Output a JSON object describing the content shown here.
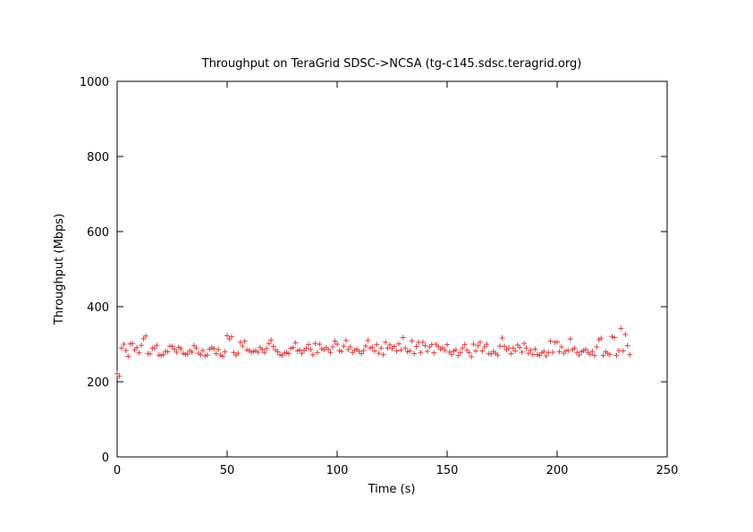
{
  "chart_data": {
    "type": "scatter",
    "title": "Throughput on TeraGrid SDSC->NCSA (tg-c145.sdsc.teragrid.org)",
    "xlabel": "Time (s)",
    "ylabel": "Throughput (Mbps)",
    "xlim": [
      0,
      250
    ],
    "ylim": [
      0,
      1000
    ],
    "xticks": [
      "0",
      "50",
      "100",
      "150",
      "200",
      "250"
    ],
    "yticks": [
      "0",
      "200",
      "400",
      "600",
      "800",
      "1000"
    ],
    "grid": false,
    "marker": "+",
    "color": "#e03c3c",
    "series": [
      {
        "x": [
          0,
          1,
          2,
          3,
          4,
          5,
          6,
          7,
          8,
          9,
          10,
          11,
          12,
          13,
          14,
          15,
          16,
          17,
          18,
          19,
          20,
          21,
          22,
          23,
          24,
          25,
          26,
          27,
          28,
          29,
          30,
          31,
          32,
          33,
          34,
          35,
          36,
          37,
          38,
          39,
          40,
          41,
          42,
          43,
          44,
          45,
          46,
          47,
          48,
          49,
          50,
          51,
          52,
          53,
          54,
          55,
          56,
          57,
          58,
          59,
          60,
          61,
          62,
          63,
          64,
          65,
          66,
          67,
          68,
          69,
          70,
          71,
          72,
          73,
          74,
          75,
          76,
          77,
          78,
          79,
          80,
          81,
          82,
          83,
          84,
          85,
          86,
          87,
          88,
          89,
          90,
          91,
          92,
          93,
          94,
          95,
          96,
          97,
          98,
          99,
          100,
          101,
          102,
          103,
          104,
          105,
          106,
          107,
          108,
          109,
          110,
          111,
          112,
          113,
          114,
          115,
          116,
          117,
          118,
          119,
          120,
          121,
          122,
          123,
          124,
          125,
          126,
          127,
          128,
          129,
          130,
          131,
          132,
          133,
          134,
          135,
          136,
          137,
          138,
          139,
          140,
          141,
          142,
          143,
          144,
          145,
          146,
          147,
          148,
          149,
          150,
          151,
          152,
          153,
          154,
          155,
          156,
          157,
          158,
          159,
          160,
          161,
          162,
          163,
          164,
          165,
          166,
          167,
          168,
          169,
          170,
          171,
          172,
          173,
          174,
          175,
          176,
          177,
          178,
          179,
          180,
          181,
          182,
          183,
          184,
          185,
          186,
          187,
          188,
          189,
          190,
          191,
          192,
          193,
          194,
          195,
          196,
          197,
          198,
          199,
          200,
          201,
          202,
          203,
          204,
          205,
          206,
          207,
          208,
          209,
          210,
          211,
          212,
          213,
          214,
          215,
          216,
          217,
          218,
          219,
          220,
          221,
          222,
          223,
          224,
          225,
          226,
          227,
          228,
          229,
          230,
          231,
          232,
          233
        ],
        "y": [
          222,
          215,
          290,
          300,
          283,
          268,
          301,
          302,
          285,
          291,
          277,
          297,
          315,
          322,
          275,
          274,
          289,
          290,
          297,
          271,
          270,
          272,
          281,
          280,
          295,
          294,
          287,
          279,
          292,
          288,
          276,
          273,
          274,
          283,
          279,
          296,
          290,
          276,
          272,
          283,
          269,
          271,
          287,
          291,
          288,
          275,
          286,
          271,
          268,
          280,
          323,
          314,
          320,
          278,
          271,
          276,
          305,
          295,
          308,
          285,
          283,
          279,
          281,
          283,
          279,
          291,
          286,
          278,
          288,
          302,
          311,
          294,
          285,
          280,
          272,
          270,
          276,
          278,
          275,
          289,
          291,
          304,
          282,
          285,
          276,
          284,
          289,
          299,
          286,
          272,
          302,
          278,
          300,
          288,
          285,
          291,
          286,
          278,
          293,
          308,
          300,
          283,
          281,
          295,
          310,
          286,
          293,
          278,
          284,
          287,
          281,
          275,
          283,
          295,
          310,
          290,
          292,
          282,
          299,
          276,
          290,
          272,
          305,
          290,
          298,
          288,
          294,
          282,
          301,
          285,
          318,
          290,
          280,
          282,
          309,
          275,
          294,
          305,
          278,
          305,
          296,
          281,
          293,
          299,
          277,
          300,
          294,
          287,
          290,
          284,
          299,
          279,
          273,
          282,
          285,
          270,
          278,
          290,
          299,
          284,
          278,
          267,
          300,
          282,
          296,
          305,
          282,
          293,
          300,
          275,
          274,
          281,
          276,
          271,
          295,
          317,
          294,
          285,
          290,
          275,
          290,
          282,
          298,
          291,
          279,
          302,
          290,
          276,
          284,
          272,
          287,
          273,
          270,
          277,
          281,
          269,
          278,
          308,
          279,
          305,
          306,
          280,
          293,
          276,
          282,
          283,
          314,
          286,
          290,
          278,
          271,
          280,
          283,
          286,
          278,
          273,
          281,
          270,
          293,
          312,
          316,
          270,
          280,
          276,
          272,
          320,
          318,
          270,
          283,
          342,
          282,
          326,
          296,
          272
        ]
      }
    ]
  }
}
